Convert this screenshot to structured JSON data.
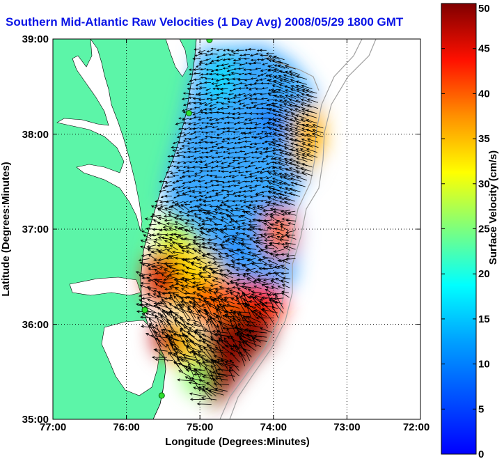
{
  "title": "Southern Mid-Atlantic Raw Velocities (1 Day Avg) 2008/05/29 1800 GMT",
  "axes": {
    "xlabel": "Longitude (Degrees:Minutes)",
    "ylabel": "Latitude (Degrees:Minutes)",
    "x_ticks": [
      "77:00",
      "76:00",
      "75:00",
      "74:00",
      "73:00",
      "72:00"
    ],
    "y_ticks": [
      "39:00",
      "38:00",
      "37:00",
      "36:00",
      "35:00"
    ],
    "xlim": [
      -77,
      -72
    ],
    "ylim": [
      35,
      39
    ],
    "grid": true
  },
  "colorbar": {
    "label": "Surface Velocity (cm/s)",
    "ticks": [
      "50",
      "45",
      "40",
      "35",
      "30",
      "25",
      "20",
      "15",
      "10",
      "5",
      "0"
    ],
    "range": [
      0,
      50
    ],
    "colormap": "jet"
  },
  "colors": {
    "land": "#5cf5a8",
    "water_inland": "#ffffff",
    "bathymetry": "#a0a0a0",
    "title": "#0a14e6"
  },
  "stations": [
    {
      "lon": -74.87,
      "lat": 38.99
    },
    {
      "lon": -75.15,
      "lat": 38.22
    },
    {
      "lon": -75.75,
      "lat": 36.15
    },
    {
      "lon": -75.52,
      "lat": 35.25
    }
  ]
}
